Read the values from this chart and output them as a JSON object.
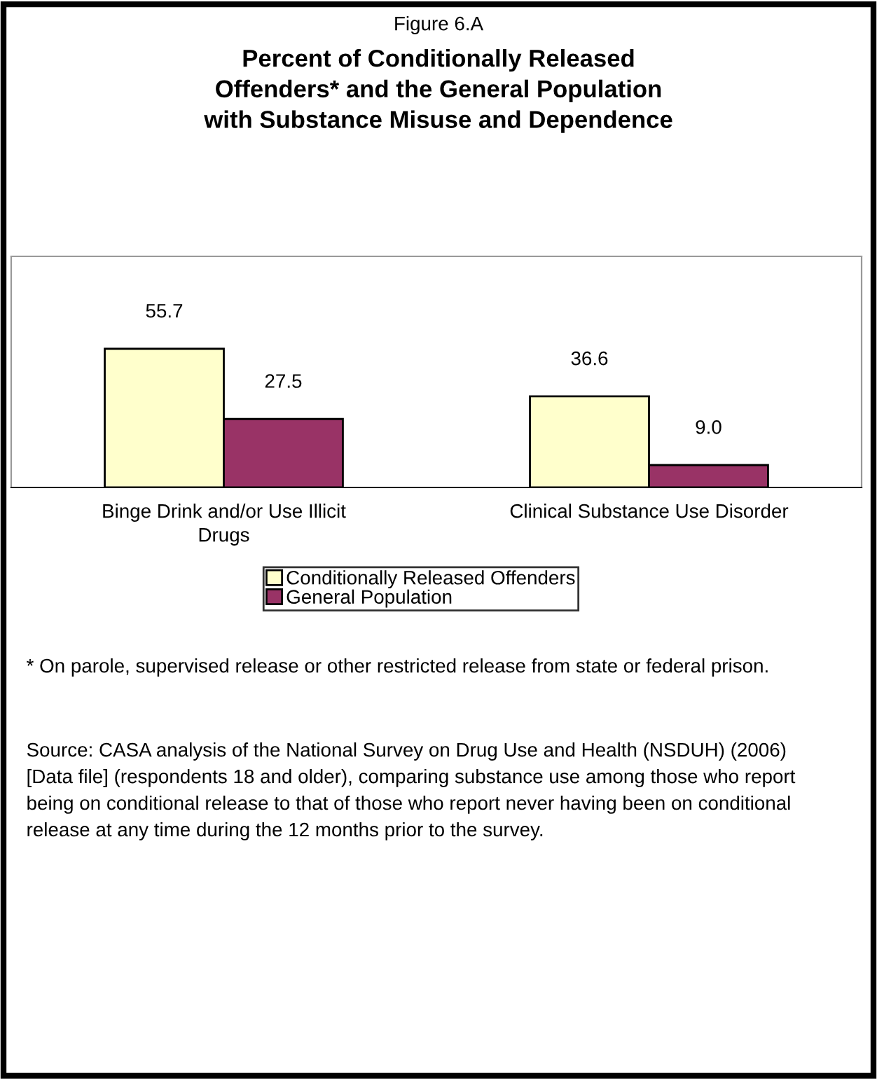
{
  "chart_data": {
    "type": "bar",
    "subtitle": "Figure 6.A",
    "title": "Percent of Conditionally Released Offenders* and the General Population with Substance Misuse and Dependence",
    "categories": [
      "Binge Drink and/or Use Illicit Drugs",
      "Clinical Substance Use Disorder"
    ],
    "series": [
      {
        "name": "Conditionally Released Offenders",
        "color": "#ffffcc",
        "values": [
          55.7,
          36.6
        ],
        "value_labels": [
          "55.7",
          "36.6"
        ]
      },
      {
        "name": "General Population",
        "color": "#993366",
        "values": [
          27.5,
          9.0
        ],
        "value_labels": [
          "27.5",
          "9.0"
        ]
      }
    ],
    "legend": "bottom",
    "annotations": [
      "* On parole, supervised release or other restricted release from state or federal prison.",
      "Source: CASA analysis of the National Survey on Drug Use and Health (NSDUH) (2006) [Data file] (respondents 18 and older), comparing substance use among those who report being on conditional release to that of those who report never having been on conditional release at any time during the 12 months prior to the survey."
    ]
  }
}
